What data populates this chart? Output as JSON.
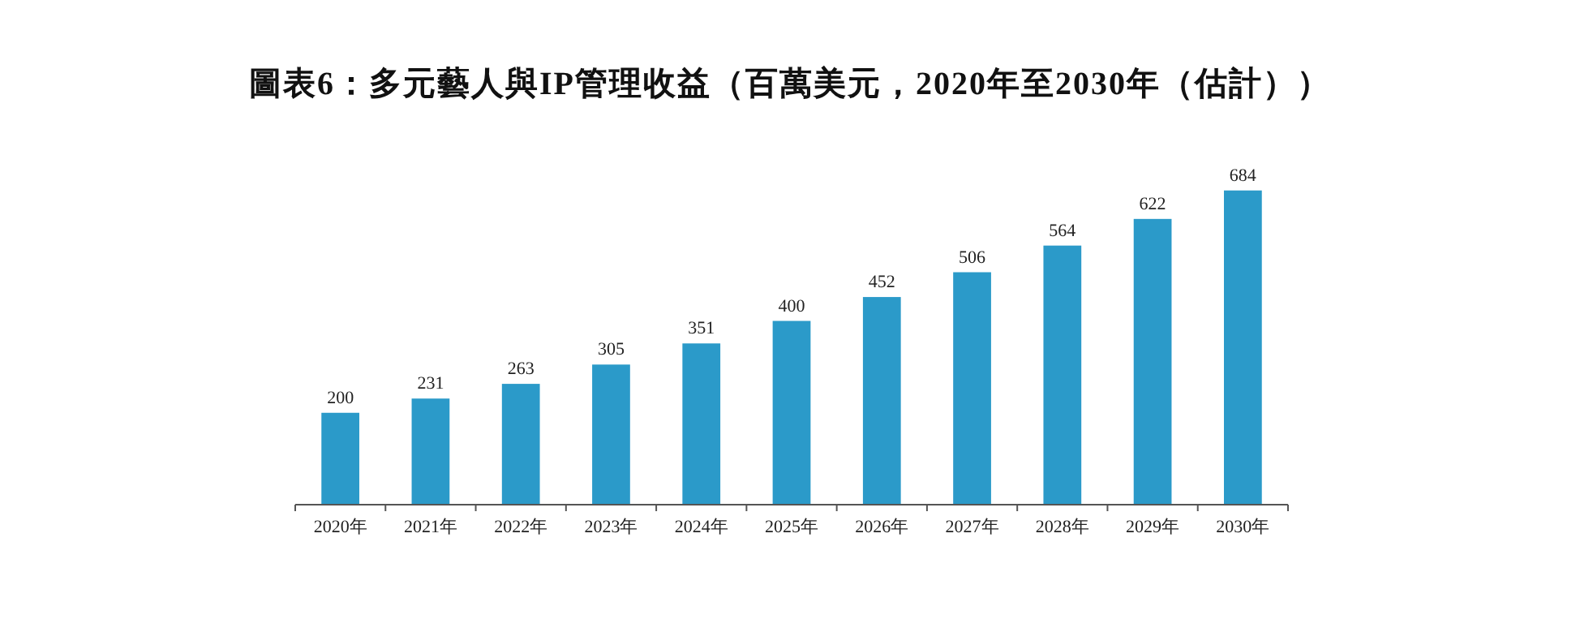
{
  "chart_data": {
    "type": "bar",
    "title": "圖表6：多元藝人與IP管理收益（百萬美元，2020年至2030年（估計））",
    "categories": [
      "2020年",
      "2021年",
      "2022年",
      "2023年",
      "2024年",
      "2025年",
      "2026年",
      "2027年",
      "2028年",
      "2029年",
      "2030年"
    ],
    "values": [
      200,
      231,
      263,
      305,
      351,
      400,
      452,
      506,
      564,
      622,
      684
    ],
    "color": "#2b9ac9",
    "data_labels": true
  }
}
